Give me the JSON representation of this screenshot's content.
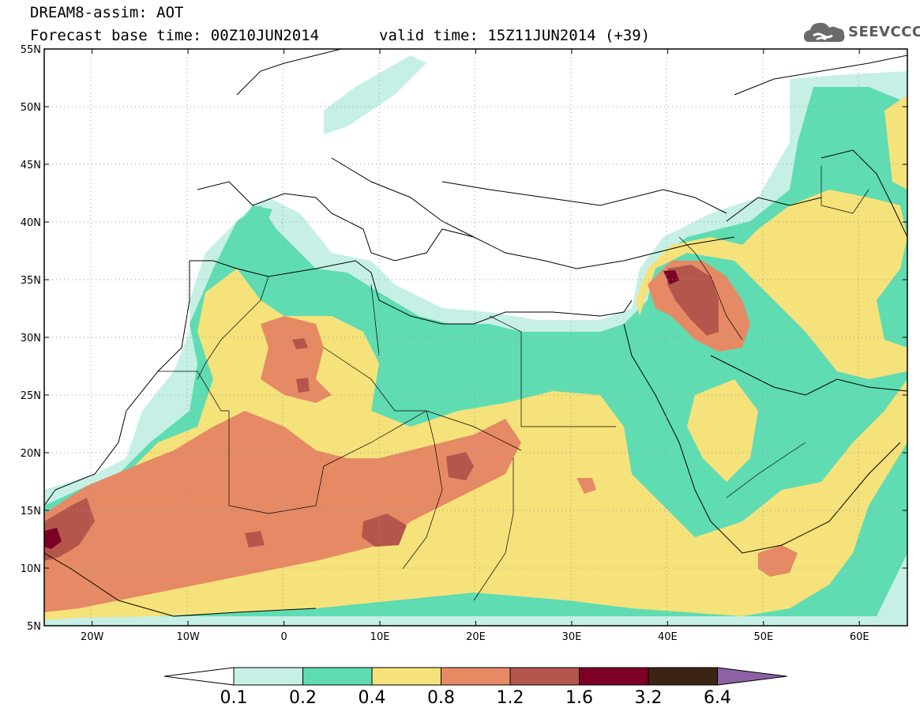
{
  "header": {
    "title": "DREAM8-assim: AOT",
    "base_time": "Forecast base time: 00Z10JUN2014",
    "valid_time": "valid time: 15Z11JUN2014 (+39)"
  },
  "logo": {
    "text": "SEEVCCC",
    "icon": "cloud-icon"
  },
  "map": {
    "lat_labels": [
      "55N",
      "50N",
      "45N",
      "40N",
      "35N",
      "30N",
      "25N",
      "20N",
      "15N",
      "10N",
      "5N"
    ],
    "lon_labels": [
      "20W",
      "10W",
      "0",
      "10E",
      "20E",
      "30E",
      "40E",
      "50E",
      "60E"
    ],
    "lon_range": [
      -25,
      65
    ],
    "lat_range": [
      5,
      55
    ],
    "grid": "dotted"
  },
  "colorbar": {
    "labels": [
      "0.1",
      "0.2",
      "0.4",
      "0.8",
      "1.2",
      "1.6",
      "3.2",
      "6.4"
    ],
    "colors": [
      "#ffffff",
      "#c6f0e6",
      "#5fdcb2",
      "#f6e27a",
      "#e58a65",
      "#b4564c",
      "#7c0026",
      "#3b2414",
      "#8c62a4"
    ]
  },
  "palette": {
    "c1": "#c6f0e6",
    "c2": "#5fdcb2",
    "c3": "#f6e27a",
    "c4": "#e58a65",
    "c5": "#b4564c",
    "c6": "#7c0026"
  }
}
